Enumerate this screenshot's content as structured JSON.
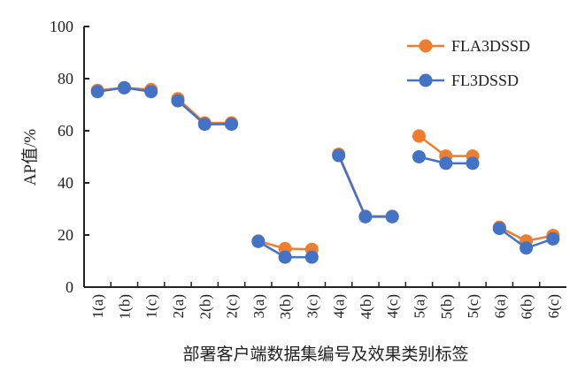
{
  "chart_data": {
    "type": "line",
    "title": "",
    "xlabel": "部署客户端数据集编号及效果类别标签",
    "ylabel": "AP值/%",
    "ylim": [
      0,
      100
    ],
    "yticks": [
      "0",
      "20",
      "40",
      "60",
      "80",
      "100"
    ],
    "grid": false,
    "legend_position": "top-right",
    "categories": [
      "1(a)",
      "1(b)",
      "1(c)",
      "2(a)",
      "2(b)",
      "2(c)",
      "3(a)",
      "3(b)",
      "3(c)",
      "4(a)",
      "4(b)",
      "4(c)",
      "5(a)",
      "5(b)",
      "5(c)",
      "6(a)",
      "6(b)",
      "6(c)"
    ],
    "groups": 6,
    "series": [
      {
        "name": "FLA3DSSD",
        "color": "#ED7D31",
        "values": [
          75.5,
          76.5,
          75.8,
          72.3,
          63,
          63,
          17.7,
          14.8,
          14.5,
          51,
          27.2,
          27.2,
          58,
          50.3,
          50.3,
          23,
          17.7,
          19.8
        ]
      },
      {
        "name": "FL3DSSD",
        "color": "#4472C4",
        "values": [
          75,
          76.5,
          75,
          71.5,
          62.5,
          62.5,
          17.5,
          11.5,
          11.5,
          50.5,
          27,
          27,
          50,
          47.5,
          47.5,
          22.5,
          15,
          18.5
        ]
      }
    ]
  }
}
